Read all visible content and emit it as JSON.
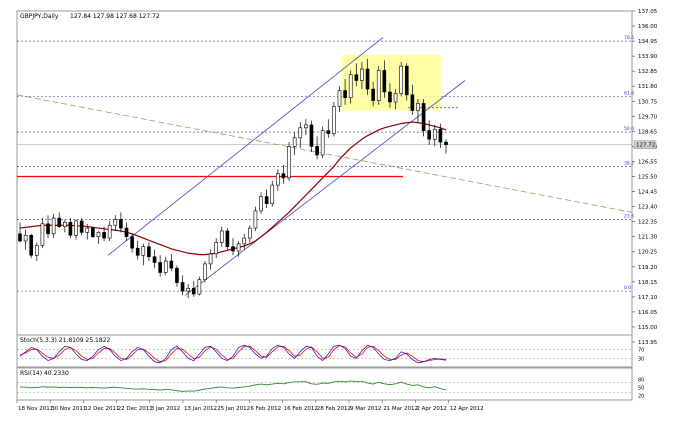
{
  "header": {
    "symbol": "GBPJPY,Daily",
    "ohlc": "127.84 127.98 127.68 127.72"
  },
  "colors": {
    "up": "#000000",
    "down": "#000000",
    "ma": "#8b0000",
    "channel": "#4444cc",
    "fib": "#3333cc",
    "support": "#ff0000",
    "trend": "#999966",
    "box": "#ffff99",
    "stochK": "#2222cc",
    "stochD": "#ff0000",
    "rsi": "#2e8b2e",
    "grid": "#cfcfcf"
  },
  "indicators": {
    "stoch_label": "Stoch(5,3,3) 21.8109 25.1822",
    "rsi_label": "RSI(14) 40.2330"
  },
  "chart_data": {
    "type": "candlestick",
    "title": "GBPJPY,Daily",
    "price_axis_ticks": [
      "137.05",
      "136.00",
      "134.95",
      "133.90",
      "132.85",
      "131.80",
      "130.75",
      "129.70",
      "128.65",
      "127.60",
      "126.55",
      "125.50",
      "124.45",
      "123.40",
      "122.35",
      "121.30",
      "120.25",
      "119.20",
      "118.15",
      "117.10",
      "116.05",
      "115.00",
      "113.95"
    ],
    "last_price": "127.72",
    "ylim": [
      113.95,
      137.05
    ],
    "date_labels": [
      "18 Nov 2011",
      "30 Nov 2011",
      "12 Dec 2011",
      "22 Dec 2011",
      "3 Jan 2012",
      "13 Jan 2012",
      "25 Jan 2012",
      "6 Feb 2012",
      "16 Feb 2012",
      "28 Feb 2012",
      "9 Mar 2012",
      "21 Mar 2012",
      "2 Apr 2012",
      "12 Apr 2012"
    ],
    "fib_levels": [
      {
        "label": "78.6",
        "price": 134.95
      },
      {
        "label": "61.8",
        "price": 131.1
      },
      {
        "label": "50.0",
        "price": 128.6
      },
      {
        "label": "38.2",
        "price": 126.2
      },
      {
        "label": "23.6",
        "price": 122.5
      },
      {
        "label": "0.0",
        "price": 117.5
      }
    ],
    "candles": [
      {
        "o": 121.5,
        "h": 122.3,
        "l": 120.9,
        "c": 121.0
      },
      {
        "o": 121.0,
        "h": 121.8,
        "l": 120.4,
        "c": 121.4
      },
      {
        "o": 121.4,
        "h": 121.5,
        "l": 119.8,
        "c": 120.0
      },
      {
        "o": 120.0,
        "h": 120.9,
        "l": 119.6,
        "c": 120.7
      },
      {
        "o": 120.7,
        "h": 122.6,
        "l": 120.5,
        "c": 122.2
      },
      {
        "o": 122.2,
        "h": 122.8,
        "l": 121.2,
        "c": 121.5
      },
      {
        "o": 121.5,
        "h": 122.9,
        "l": 121.2,
        "c": 122.6
      },
      {
        "o": 122.6,
        "h": 123.0,
        "l": 121.9,
        "c": 122.0
      },
      {
        "o": 122.0,
        "h": 122.5,
        "l": 121.6,
        "c": 122.3
      },
      {
        "o": 122.3,
        "h": 122.6,
        "l": 121.2,
        "c": 121.4
      },
      {
        "o": 121.4,
        "h": 122.5,
        "l": 121.1,
        "c": 122.4
      },
      {
        "o": 122.4,
        "h": 122.6,
        "l": 121.4,
        "c": 121.6
      },
      {
        "o": 121.6,
        "h": 122.2,
        "l": 121.1,
        "c": 121.9
      },
      {
        "o": 121.9,
        "h": 122.0,
        "l": 121.2,
        "c": 121.3
      },
      {
        "o": 121.3,
        "h": 121.7,
        "l": 120.8,
        "c": 121.6
      },
      {
        "o": 121.6,
        "h": 122.0,
        "l": 121.0,
        "c": 121.2
      },
      {
        "o": 121.2,
        "h": 122.4,
        "l": 121.0,
        "c": 122.1
      },
      {
        "o": 122.1,
        "h": 122.8,
        "l": 121.7,
        "c": 122.5
      },
      {
        "o": 122.5,
        "h": 123.0,
        "l": 121.6,
        "c": 121.9
      },
      {
        "o": 121.9,
        "h": 122.3,
        "l": 121.0,
        "c": 121.3
      },
      {
        "o": 121.3,
        "h": 121.5,
        "l": 120.2,
        "c": 120.5
      },
      {
        "o": 120.5,
        "h": 121.0,
        "l": 119.7,
        "c": 120.0
      },
      {
        "o": 120.0,
        "h": 120.8,
        "l": 119.3,
        "c": 120.6
      },
      {
        "o": 120.6,
        "h": 120.9,
        "l": 119.6,
        "c": 119.9
      },
      {
        "o": 119.9,
        "h": 120.4,
        "l": 119.1,
        "c": 119.5
      },
      {
        "o": 119.5,
        "h": 120.0,
        "l": 118.5,
        "c": 118.8
      },
      {
        "o": 118.8,
        "h": 119.9,
        "l": 118.6,
        "c": 119.6
      },
      {
        "o": 119.6,
        "h": 120.1,
        "l": 118.9,
        "c": 119.1
      },
      {
        "o": 119.1,
        "h": 119.3,
        "l": 117.8,
        "c": 118.1
      },
      {
        "o": 118.1,
        "h": 118.6,
        "l": 117.2,
        "c": 117.5
      },
      {
        "o": 117.5,
        "h": 118.0,
        "l": 117.0,
        "c": 117.7
      },
      {
        "o": 117.7,
        "h": 118.2,
        "l": 117.1,
        "c": 117.3
      },
      {
        "o": 117.3,
        "h": 118.5,
        "l": 117.2,
        "c": 118.3
      },
      {
        "o": 118.3,
        "h": 119.6,
        "l": 118.1,
        "c": 119.4
      },
      {
        "o": 119.4,
        "h": 120.4,
        "l": 119.0,
        "c": 120.1
      },
      {
        "o": 120.1,
        "h": 121.2,
        "l": 119.8,
        "c": 120.9
      },
      {
        "o": 120.9,
        "h": 122.0,
        "l": 120.6,
        "c": 121.7
      },
      {
        "o": 121.7,
        "h": 121.9,
        "l": 120.4,
        "c": 120.6
      },
      {
        "o": 120.6,
        "h": 121.2,
        "l": 120.0,
        "c": 120.3
      },
      {
        "o": 120.3,
        "h": 121.0,
        "l": 119.9,
        "c": 120.8
      },
      {
        "o": 120.8,
        "h": 121.5,
        "l": 120.4,
        "c": 121.2
      },
      {
        "o": 121.2,
        "h": 122.1,
        "l": 120.9,
        "c": 121.9
      },
      {
        "o": 121.9,
        "h": 123.4,
        "l": 121.7,
        "c": 123.1
      },
      {
        "o": 123.1,
        "h": 124.4,
        "l": 122.9,
        "c": 124.1
      },
      {
        "o": 124.1,
        "h": 124.6,
        "l": 123.3,
        "c": 123.6
      },
      {
        "o": 123.6,
        "h": 125.2,
        "l": 123.4,
        "c": 124.9
      },
      {
        "o": 124.9,
        "h": 126.0,
        "l": 124.5,
        "c": 125.7
      },
      {
        "o": 125.7,
        "h": 126.3,
        "l": 125.0,
        "c": 125.4
      },
      {
        "o": 125.4,
        "h": 127.9,
        "l": 125.2,
        "c": 127.6
      },
      {
        "o": 127.6,
        "h": 128.6,
        "l": 127.0,
        "c": 128.2
      },
      {
        "o": 128.2,
        "h": 129.3,
        "l": 127.5,
        "c": 128.9
      },
      {
        "o": 128.9,
        "h": 129.5,
        "l": 128.4,
        "c": 129.1
      },
      {
        "o": 129.1,
        "h": 129.4,
        "l": 127.2,
        "c": 127.6
      },
      {
        "o": 127.6,
        "h": 128.3,
        "l": 126.7,
        "c": 127.0
      },
      {
        "o": 127.0,
        "h": 129.0,
        "l": 126.8,
        "c": 128.7
      },
      {
        "o": 128.7,
        "h": 129.5,
        "l": 128.2,
        "c": 128.5
      },
      {
        "o": 128.5,
        "h": 130.7,
        "l": 128.3,
        "c": 130.4
      },
      {
        "o": 130.4,
        "h": 131.8,
        "l": 130.0,
        "c": 131.5
      },
      {
        "o": 131.5,
        "h": 132.3,
        "l": 130.5,
        "c": 131.0
      },
      {
        "o": 131.0,
        "h": 132.9,
        "l": 130.6,
        "c": 132.6
      },
      {
        "o": 132.6,
        "h": 133.4,
        "l": 131.8,
        "c": 132.2
      },
      {
        "o": 132.2,
        "h": 133.5,
        "l": 131.6,
        "c": 133.0
      },
      {
        "o": 133.0,
        "h": 133.7,
        "l": 131.2,
        "c": 131.6
      },
      {
        "o": 131.6,
        "h": 132.1,
        "l": 130.4,
        "c": 130.8
      },
      {
        "o": 130.8,
        "h": 133.2,
        "l": 130.5,
        "c": 132.9
      },
      {
        "o": 132.9,
        "h": 133.6,
        "l": 131.0,
        "c": 131.4
      },
      {
        "o": 131.4,
        "h": 132.0,
        "l": 130.3,
        "c": 130.7
      },
      {
        "o": 130.7,
        "h": 131.6,
        "l": 130.2,
        "c": 131.3
      },
      {
        "o": 131.3,
        "h": 133.5,
        "l": 131.1,
        "c": 133.2
      },
      {
        "o": 133.2,
        "h": 133.4,
        "l": 130.8,
        "c": 131.2
      },
      {
        "o": 131.2,
        "h": 131.9,
        "l": 129.8,
        "c": 130.1
      },
      {
        "o": 130.1,
        "h": 130.9,
        "l": 129.3,
        "c": 130.6
      },
      {
        "o": 130.6,
        "h": 130.9,
        "l": 128.3,
        "c": 128.7
      },
      {
        "o": 128.7,
        "h": 129.4,
        "l": 127.7,
        "c": 128.1
      },
      {
        "o": 128.1,
        "h": 129.1,
        "l": 127.6,
        "c": 128.8
      },
      {
        "o": 128.8,
        "h": 129.2,
        "l": 127.5,
        "c": 127.9
      },
      {
        "o": 127.9,
        "h": 128.1,
        "l": 127.1,
        "c": 127.72
      }
    ],
    "ma_series": [
      121.9,
      121.95,
      122.0,
      122.05,
      122.1,
      122.1,
      122.1,
      122.1,
      122.1,
      122.1,
      122.05,
      122.05,
      122.0,
      121.95,
      121.9,
      121.85,
      121.8,
      121.75,
      121.7,
      121.6,
      121.5,
      121.35,
      121.2,
      121.05,
      120.9,
      120.75,
      120.6,
      120.45,
      120.35,
      120.25,
      120.15,
      120.1,
      120.05,
      120.05,
      120.1,
      120.15,
      120.25,
      120.35,
      120.45,
      120.55,
      120.65,
      120.8,
      121.0,
      121.3,
      121.6,
      121.95,
      122.3,
      122.65,
      123.0,
      123.4,
      123.8,
      124.2,
      124.6,
      125.0,
      125.4,
      125.8,
      126.2,
      126.7,
      127.1,
      127.5,
      127.8,
      128.1,
      128.35,
      128.55,
      128.75,
      128.9,
      129.0,
      129.1,
      129.2,
      129.25,
      129.3,
      129.25,
      129.2,
      129.1,
      129.0,
      128.9,
      128.75
    ],
    "stoch_k": [
      40,
      60,
      80,
      70,
      40,
      20,
      30,
      60,
      85,
      80,
      50,
      25,
      20,
      40,
      70,
      85,
      70,
      40,
      20,
      30,
      60,
      80,
      70,
      40,
      15,
      10,
      30,
      70,
      85,
      60,
      30,
      20,
      50,
      80,
      85,
      60,
      30,
      20,
      40,
      80,
      90,
      80,
      50,
      30,
      40,
      75,
      90,
      80,
      50,
      30,
      60,
      85,
      80,
      40,
      20,
      50,
      85,
      90,
      75,
      40,
      30,
      65,
      90,
      80,
      50,
      25,
      20,
      30,
      60,
      50,
      25,
      10,
      15,
      25,
      30,
      25,
      21.8
    ],
    "stoch_d": [
      45,
      55,
      70,
      72,
      55,
      35,
      30,
      45,
      70,
      80,
      65,
      40,
      25,
      30,
      55,
      75,
      75,
      55,
      30,
      25,
      45,
      70,
      72,
      55,
      30,
      15,
      20,
      50,
      75,
      72,
      50,
      28,
      35,
      65,
      82,
      72,
      45,
      25,
      30,
      60,
      85,
      85,
      65,
      40,
      35,
      60,
      82,
      85,
      65,
      40,
      45,
      72,
      82,
      60,
      30,
      35,
      70,
      88,
      82,
      55,
      35,
      50,
      80,
      85,
      65,
      40,
      25,
      25,
      45,
      55,
      40,
      20,
      15,
      20,
      25,
      27,
      25.2
    ],
    "stoch_levels": [
      30,
      70
    ],
    "rsi": [
      52,
      51,
      49,
      50,
      53,
      51,
      52,
      50,
      51,
      50,
      51,
      50,
      49,
      50,
      49,
      48,
      50,
      51,
      49,
      47,
      45,
      44,
      45,
      43,
      42,
      40,
      43,
      41,
      38,
      35,
      37,
      36,
      40,
      44,
      47,
      50,
      52,
      49,
      48,
      50,
      52,
      55,
      60,
      63,
      60,
      63,
      66,
      64,
      69,
      71,
      72,
      72,
      64,
      62,
      67,
      66,
      71,
      74,
      71,
      75,
      72,
      74,
      67,
      63,
      70,
      64,
      61,
      64,
      70,
      63,
      58,
      60,
      52,
      49,
      53,
      46,
      40.2
    ],
    "rsi_ticks": [
      "80",
      "50",
      "20"
    ],
    "rsi_levels": [
      30,
      70
    ]
  }
}
